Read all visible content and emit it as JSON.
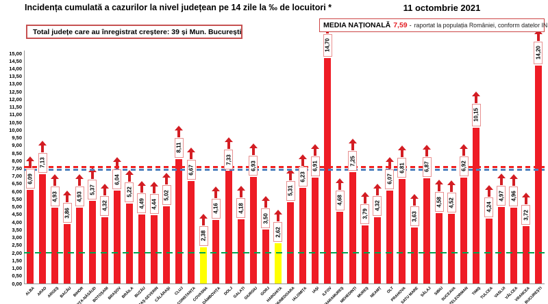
{
  "header": {
    "title": "Incidența cumulată a cazurilor la nivel județean pe 14 zile la ‰ de locuitori *",
    "date": "11 octombrie 2021",
    "total_box": "Total județe care au înregistrat creștere:  39 și Mun. București",
    "media_box": {
      "label": "MEDIA NAȚIONALĂ",
      "value": "7,59",
      "dash": "-",
      "note": "raportat la populația României, conform datelor INS"
    }
  },
  "chart_data": {
    "type": "bar",
    "title": "Incidența cumulată a cazurilor la nivel județean pe 14 zile la ‰ de locuitori *",
    "xlabel": "",
    "ylabel": "",
    "ylim": [
      0,
      15
    ],
    "ytick_step": 0.5,
    "decimal_separator": ",",
    "grid": false,
    "legend": false,
    "categories": [
      "ALBA",
      "ARAD",
      "ARGEȘ",
      "BACĂU",
      "BIHOR",
      "BISTRIȚA-NĂSĂUD",
      "BOTOȘANI",
      "BRAȘOV",
      "BRĂILA",
      "BUZĂU",
      "CARAȘ-SEVERIN",
      "CĂLĂRAȘI",
      "CLUJ",
      "CONSTANȚA",
      "COVASNA",
      "DÂMBOVIȚA",
      "DOLJ",
      "GALAȚI",
      "GIURGIU",
      "GORJ",
      "HARGHITA",
      "HUNEDOARA",
      "IALOMIȚA",
      "IAȘI",
      "ILFOV",
      "MARAMUREȘ",
      "MEHEDINȚI",
      "MUREȘ",
      "NEAMȚ",
      "OLT",
      "PRAHOVA",
      "SATU MARE",
      "SĂLAJ",
      "SIBIU",
      "SUCEAVA",
      "TELEORMAN",
      "TIMIȘ",
      "TULCEA",
      "VASLUI",
      "VÂLCEA",
      "VRANCEA",
      "MUN. BUCUREȘTI"
    ],
    "values": [
      6.09,
      7.13,
      4.93,
      3.86,
      4.93,
      5.37,
      4.32,
      6.04,
      5.22,
      4.49,
      4.44,
      5.02,
      8.11,
      6.67,
      2.38,
      4.16,
      7.33,
      4.18,
      6.93,
      3.5,
      2.62,
      5.31,
      6.23,
      6.91,
      14.7,
      4.68,
      7.25,
      3.79,
      4.32,
      6.07,
      6.81,
      3.63,
      6.87,
      4.58,
      4.52,
      6.92,
      10.15,
      4.24,
      4.97,
      4.96,
      3.72,
      14.2
    ],
    "bar_color_default": "#ee1c25",
    "highlight_color": "#ffff00",
    "highlight_indices": [
      14,
      20
    ],
    "arrow_color": "#d31d23",
    "reference_lines": [
      {
        "name": "media-nationala-line",
        "value": 7.59,
        "color": "#ef1f1f",
        "style": "dashed"
      },
      {
        "name": "threshold-blue-line",
        "value": 7.42,
        "color": "#4f81bd",
        "style": "dashed"
      },
      {
        "name": "threshold-green-line",
        "value": 2.0,
        "color": "#00a550",
        "style": "dashed"
      }
    ]
  }
}
